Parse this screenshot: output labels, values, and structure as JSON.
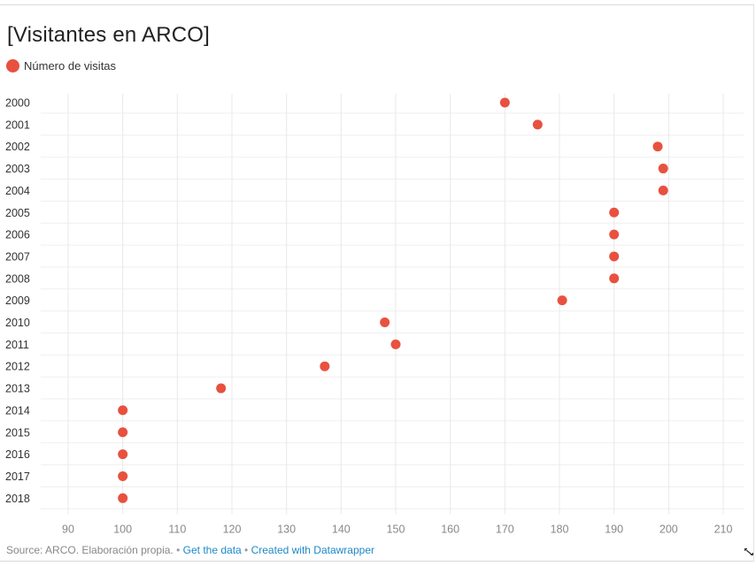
{
  "chart_data": {
    "type": "scatter",
    "title": "[Visitantes en ARCO]",
    "series": [
      {
        "name": "Número de visitas",
        "color": "#e8513f",
        "points": [
          {
            "y": "2000",
            "x": 170
          },
          {
            "y": "2001",
            "x": 176
          },
          {
            "y": "2002",
            "x": 198
          },
          {
            "y": "2003",
            "x": 199
          },
          {
            "y": "2004",
            "x": 199
          },
          {
            "y": "2005",
            "x": 190
          },
          {
            "y": "2006",
            "x": 190
          },
          {
            "y": "2007",
            "x": 190
          },
          {
            "y": "2008",
            "x": 190
          },
          {
            "y": "2009",
            "x": 180.5
          },
          {
            "y": "2010",
            "x": 148
          },
          {
            "y": "2011",
            "x": 150
          },
          {
            "y": "2012",
            "x": 137
          },
          {
            "y": "2013",
            "x": 118
          },
          {
            "y": "2014",
            "x": 100
          },
          {
            "y": "2015",
            "x": 100
          },
          {
            "y": "2016",
            "x": 100
          },
          {
            "y": "2017",
            "x": 100
          },
          {
            "y": "2018",
            "x": 100
          }
        ]
      }
    ],
    "categories": [
      "2000",
      "2001",
      "2002",
      "2003",
      "2004",
      "2005",
      "2006",
      "2007",
      "2008",
      "2009",
      "2010",
      "2011",
      "2012",
      "2013",
      "2014",
      "2015",
      "2016",
      "2017",
      "2018"
    ],
    "xlim": [
      90,
      210
    ],
    "xticks": [
      "90",
      "100",
      "110",
      "120",
      "130",
      "140",
      "150",
      "160",
      "170",
      "180",
      "190",
      "200",
      "210"
    ],
    "grid": true,
    "legend_position": "top-left"
  },
  "footer": {
    "source": "Source: ARCO. Elaboración propia.",
    "separator": "•",
    "get_data": "Get the data",
    "created_with": "Created with Datawrapper"
  }
}
